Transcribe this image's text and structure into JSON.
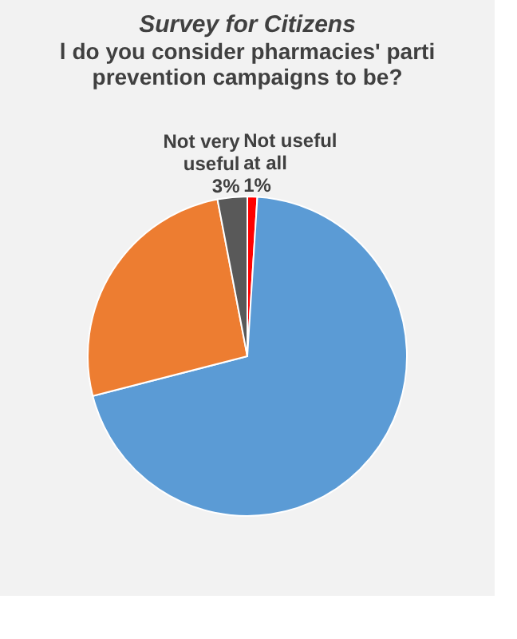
{
  "chart_data": {
    "type": "pie",
    "title": "Survey for Citizens",
    "subtitle": [
      "l do you consider pharmacies' parti",
      "prevention campaigns to be?"
    ],
    "categories": [
      "Not useful at all",
      null,
      null,
      "Not very useful"
    ],
    "values": [
      1,
      70,
      26,
      3
    ],
    "colors": [
      "#ff0000",
      "#5b9bd5",
      "#ed7d31",
      "#595959"
    ],
    "value_labels": [
      "1%",
      null,
      null,
      "3%"
    ]
  }
}
